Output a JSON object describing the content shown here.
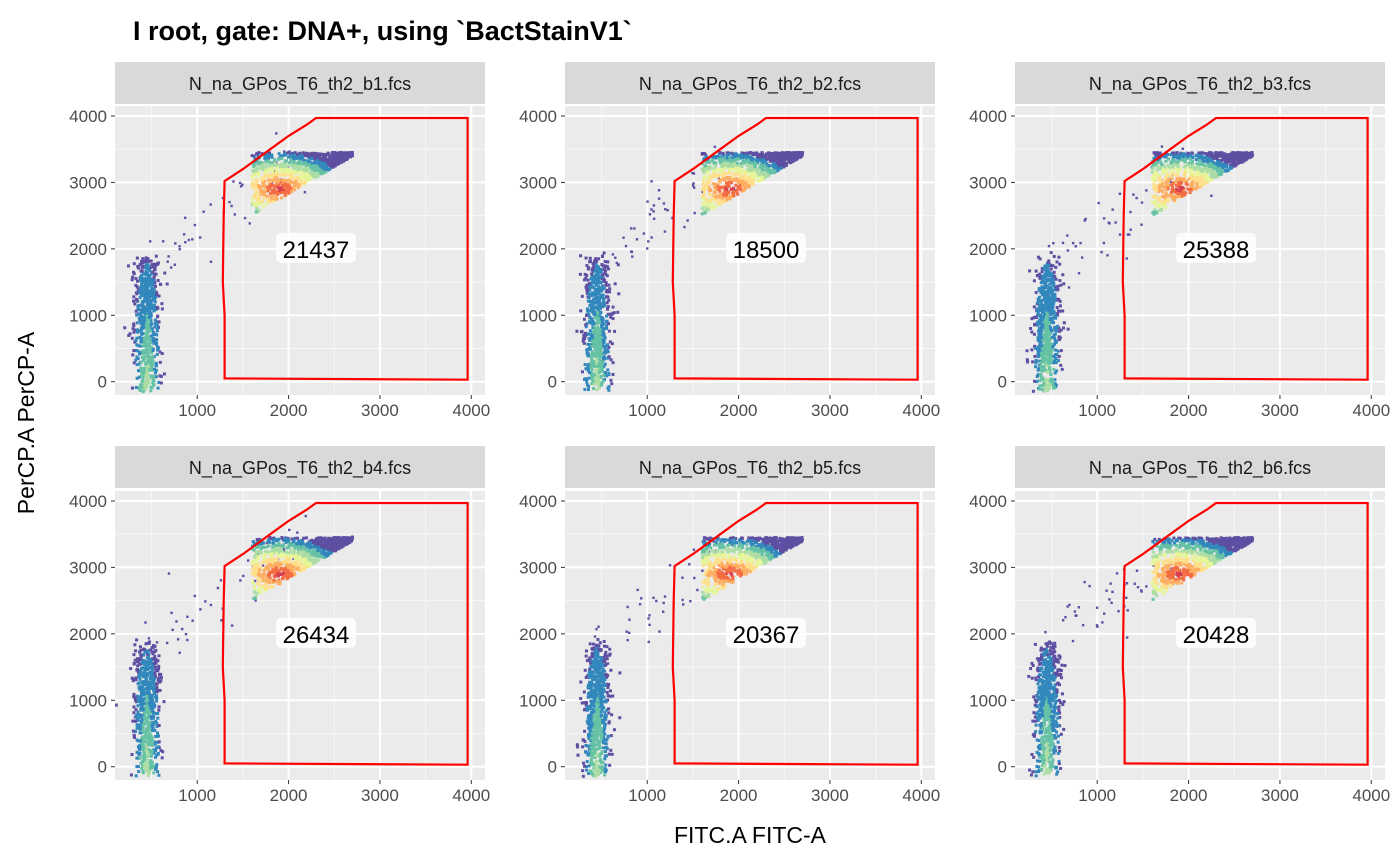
{
  "chart_data": {
    "type": "scatter",
    "title": "I  root, gate: DNA+, using `BactStainV1`",
    "xlabel": "FITC.A FITC-A",
    "ylabel": "PerCP.A PerCP-A",
    "xlim": [
      100,
      4150
    ],
    "ylim": [
      -200,
      4150
    ],
    "xticks": [
      1000,
      2000,
      3000,
      4000
    ],
    "yticks": [
      0,
      1000,
      2000,
      3000,
      4000
    ],
    "gate_name": "DNA+",
    "gate_polygon": [
      [
        1300,
        50
      ],
      [
        1300,
        1000
      ],
      [
        1280,
        1500
      ],
      [
        1290,
        2500
      ],
      [
        1300,
        3020
      ],
      [
        1500,
        3200
      ],
      [
        1800,
        3500
      ],
      [
        2000,
        3700
      ],
      [
        2200,
        3870
      ],
      [
        2300,
        3970
      ],
      [
        3960,
        3970
      ],
      [
        3960,
        30
      ]
    ],
    "gate_color": "#ff0000",
    "count_label_position": [
      2300,
      2000
    ],
    "panels": [
      {
        "sample": "N_na_GPos_T6_th2_b1.fcs",
        "count": "21437"
      },
      {
        "sample": "N_na_GPos_T6_th2_b2.fcs",
        "count": "18500"
      },
      {
        "sample": "N_na_GPos_T6_th2_b3.fcs",
        "count": "25388"
      },
      {
        "sample": "N_na_GPos_T6_th2_b4.fcs",
        "count": "26434"
      },
      {
        "sample": "N_na_GPos_T6_th2_b5.fcs",
        "count": "20367"
      },
      {
        "sample": "N_na_GPos_T6_th2_b6.fcs",
        "count": "20428"
      }
    ],
    "populations": [
      {
        "name": "DNA- cluster",
        "x_center": 450,
        "x_spread": 80,
        "y_range": [
          -150,
          2000
        ]
      },
      {
        "name": "DNA+ cluster",
        "x_range": [
          1600,
          2700
        ],
        "y_range": [
          2450,
          3500
        ],
        "peak": [
          1900,
          2900
        ]
      }
    ],
    "density_colors": [
      "#5e4fa2",
      "#3288bd",
      "#66c2a5",
      "#abdda4",
      "#e6f598",
      "#fee08b",
      "#fdae61",
      "#f46d43",
      "#d53e4f"
    ]
  }
}
